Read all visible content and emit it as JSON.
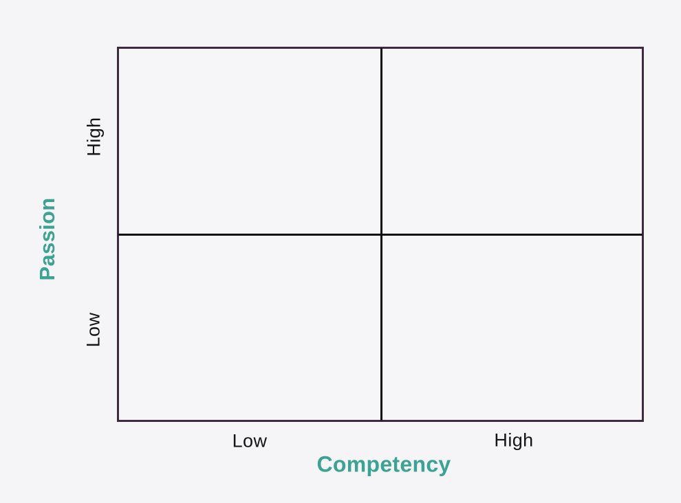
{
  "matrix": {
    "y_axis": {
      "label": "Passion",
      "high_label": "High",
      "low_label": "Low"
    },
    "x_axis": {
      "label": "Competency",
      "low_label": "Low",
      "high_label": "High"
    },
    "colors": {
      "axis_title_teal": "#3aa392",
      "frame_border_plum": "#3c2b3e",
      "divider_black": "#0f0f0f",
      "background": "#f5f4f6",
      "tick_text": "#141414"
    }
  }
}
